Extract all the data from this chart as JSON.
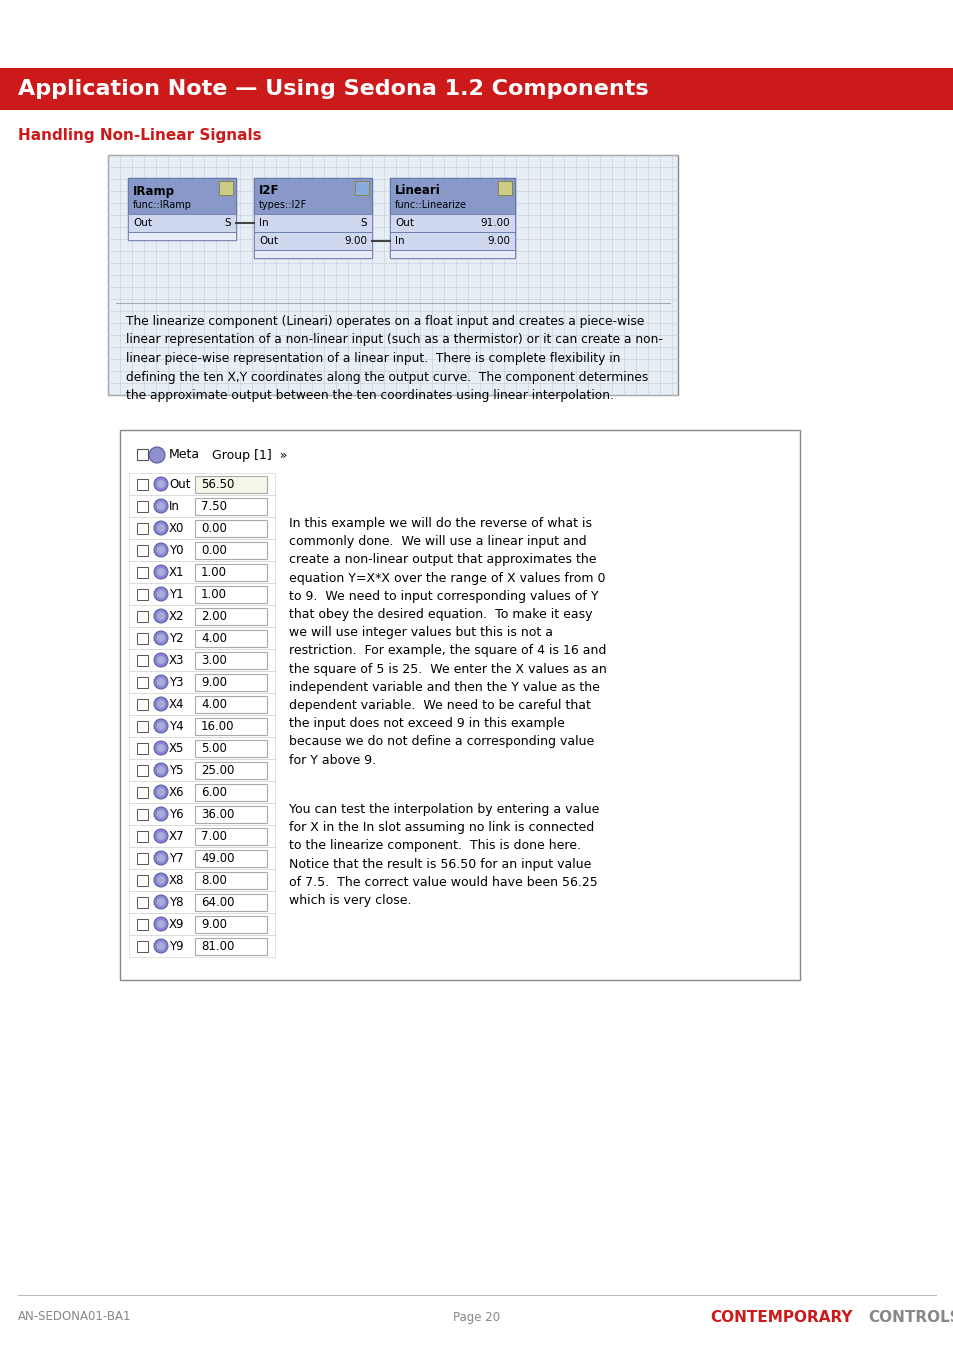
{
  "header_text": "Application Note — Using Sedona 1.2 Components",
  "header_bg": "#cc1a1a",
  "header_text_color": "#ffffff",
  "subheader_text": "Handling Non-Linear Signals",
  "subheader_color": "#cc1a1a",
  "footer_left": "AN-SEDONA01-BA1",
  "footer_center": "Page 20",
  "top_box_text": "The linearize component (Lineari) operates on a float input and creates a piece-wise\nlinear representation of a non-linear input (such as a thermistor) or it can create a non-\nlinear piece-wise representation of a linear input.  There is complete flexibility in\ndefining the ten X,Y coordinates along the output curve.  The component determines\nthe approximate output between the ten coordinates using linear interpolation.",
  "table_rows": [
    {
      "label": "Out",
      "value": "56.50",
      "icon_color": "#7b7bc8"
    },
    {
      "label": "In",
      "value": "7.50",
      "icon_color": "#7b7bc8"
    },
    {
      "label": "X0",
      "value": "0.00",
      "icon_color": "#7b7bc8"
    },
    {
      "label": "Y0",
      "value": "0.00",
      "icon_color": "#7b7bc8"
    },
    {
      "label": "X1",
      "value": "1.00",
      "icon_color": "#7b7bc8"
    },
    {
      "label": "Y1",
      "value": "1.00",
      "icon_color": "#7b7bc8"
    },
    {
      "label": "X2",
      "value": "2.00",
      "icon_color": "#7b7bc8"
    },
    {
      "label": "Y2",
      "value": "4.00",
      "icon_color": "#7b7bc8"
    },
    {
      "label": "X3",
      "value": "3.00",
      "icon_color": "#7b7bc8"
    },
    {
      "label": "Y3",
      "value": "9.00",
      "icon_color": "#7b7bc8"
    },
    {
      "label": "X4",
      "value": "4.00",
      "icon_color": "#7b7bc8"
    },
    {
      "label": "Y4",
      "value": "16.00",
      "icon_color": "#7b7bc8"
    },
    {
      "label": "X5",
      "value": "5.00",
      "icon_color": "#7b7bc8"
    },
    {
      "label": "Y5",
      "value": "25.00",
      "icon_color": "#7b7bc8"
    },
    {
      "label": "X6",
      "value": "6.00",
      "icon_color": "#7b7bc8"
    },
    {
      "label": "Y6",
      "value": "36.00",
      "icon_color": "#7b7bc8"
    },
    {
      "label": "X7",
      "value": "7.00",
      "icon_color": "#7b7bc8"
    },
    {
      "label": "Y7",
      "value": "49.00",
      "icon_color": "#7b7bc8"
    },
    {
      "label": "X8",
      "value": "8.00",
      "icon_color": "#7b7bc8"
    },
    {
      "label": "Y8",
      "value": "64.00",
      "icon_color": "#7b7bc8"
    },
    {
      "label": "X9",
      "value": "9.00",
      "icon_color": "#7b7bc8"
    },
    {
      "label": "Y9",
      "value": "81.00",
      "icon_color": "#7b7bc8"
    }
  ],
  "right_text_para1": "In this example we will do the reverse of what is\ncommonly done.  We will use a linear input and\ncreate a non-linear output that approximates the\nequation Y=X*X over the range of X values from 0\nto 9.  We need to input corresponding values of Y\nthat obey the desired equation.  To make it easy\nwe will use integer values but this is not a\nrestriction.  For example, the square of 4 is 16 and\nthe square of 5 is 25.  We enter the X values as an\nindependent variable and then the Y value as the\ndependent variable.  We need to be careful that\nthe input does not exceed 9 in this example\nbecause we do not define a corresponding value\nfor Y above 9.",
  "right_text_para2": "You can test the interpolation by entering a value\nfor X in the In slot assuming no link is connected\nto the linearize component.  This is done here.\nNotice that the result is 56.50 for an input value\nof 7.5.  The correct value would have been 56.25\nwhich is very close.",
  "comp_bg": "#b8c8e8",
  "comp_header_bg": "#8898c8",
  "comp_border": "#6878a8",
  "comp_row_bg": "#d0d8f0",
  "comp_bottom_bg": "#e8ecf8",
  "grid_color": "#c0ccd8",
  "diagram_bg": "#e8eef5"
}
